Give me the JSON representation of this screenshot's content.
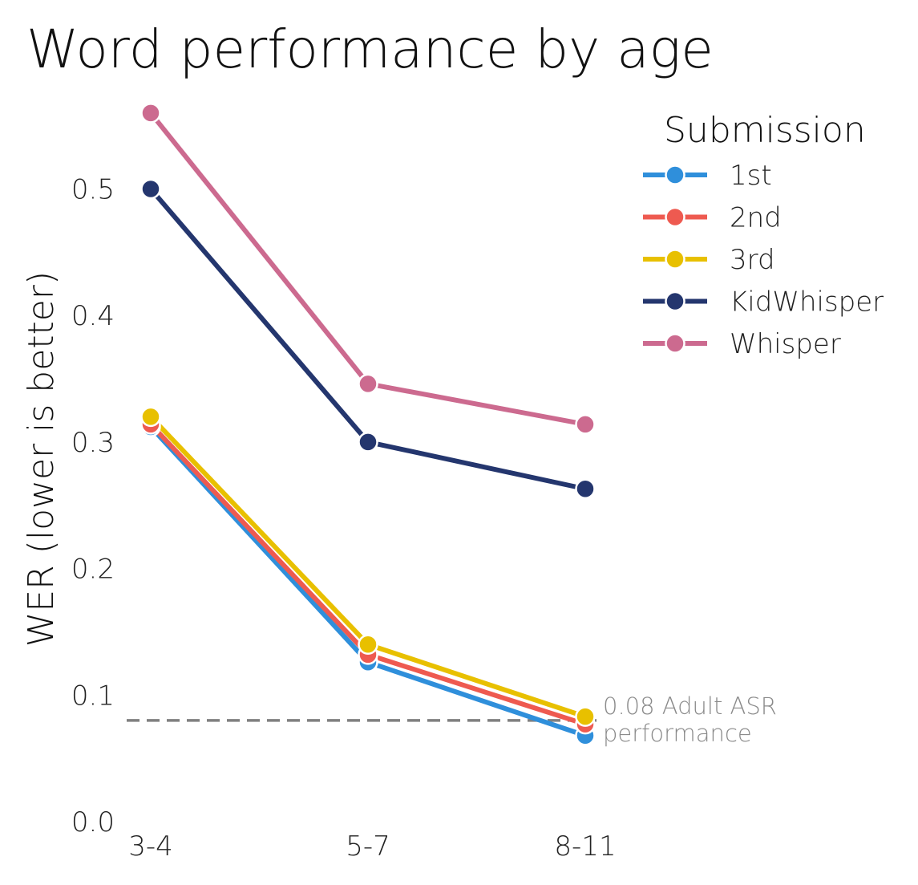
{
  "chart_data": {
    "type": "line",
    "title": "Word performance by age",
    "xlabel": "",
    "ylabel": "WER (lower is better)",
    "categories": [
      "3-4",
      "5-7",
      "8-11"
    ],
    "ylim": [
      0,
      0.58
    ],
    "yticks": [
      "0.0",
      "0.1",
      "0.2",
      "0.3",
      "0.4",
      "0.5"
    ],
    "grid": false,
    "legend": {
      "title": "Submission",
      "placement": "top-right"
    },
    "series": [
      {
        "name": "1st",
        "color": "#2f8fdb",
        "values": [
          0.312,
          0.126,
          0.068
        ]
      },
      {
        "name": "2nd",
        "color": "#ee5a50",
        "values": [
          0.314,
          0.132,
          0.077
        ]
      },
      {
        "name": "3rd",
        "color": "#e8c000",
        "values": [
          0.32,
          0.14,
          0.083
        ]
      },
      {
        "name": "KidWhisper",
        "color": "#24366e",
        "values": [
          0.5,
          0.3,
          0.263
        ]
      },
      {
        "name": "Whisper",
        "color": "#cc6a8f",
        "values": [
          0.56,
          0.346,
          0.314
        ]
      }
    ],
    "reference_line": {
      "value": 0.08,
      "color": "#808080",
      "label_line1": "0.08 Adult ASR",
      "label_line2": "performance"
    }
  }
}
